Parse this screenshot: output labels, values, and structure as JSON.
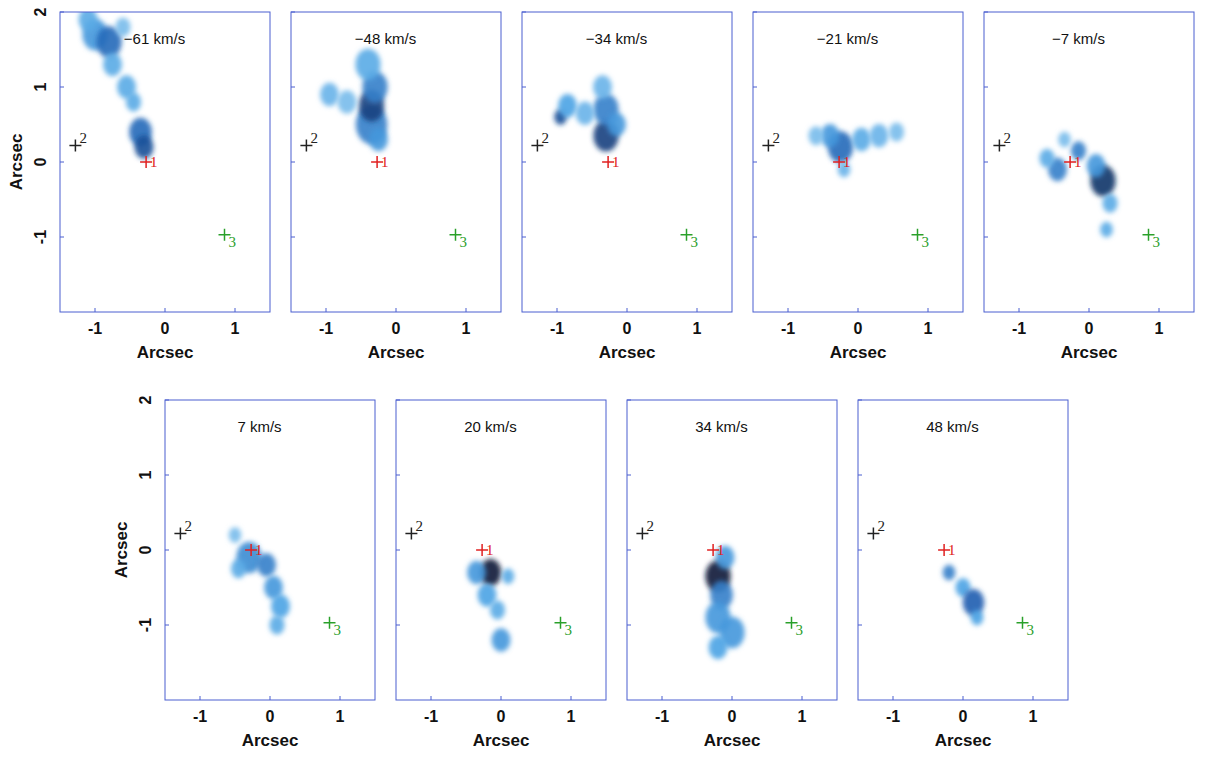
{
  "chart_data": [
    {
      "type": "channel_map",
      "title": "−61 km/s",
      "xlabel": "Arcsec",
      "ylabel": "Arcsec",
      "xlim": [
        -1.5,
        1.5
      ],
      "ylim": [
        -2,
        2
      ],
      "xticks": [
        -1,
        0,
        1
      ],
      "yticks": [
        -1,
        0,
        1,
        2
      ],
      "emission": {
        "x": [
          -1.0,
          -0.8,
          -0.75,
          -0.55,
          -0.45,
          -0.35,
          -0.3,
          -1.1,
          -0.6
        ],
        "y": [
          1.7,
          1.6,
          1.3,
          1.0,
          0.8,
          0.4,
          0.2,
          1.9,
          1.8
        ],
        "size": [
          0.2,
          0.2,
          0.15,
          0.15,
          0.12,
          0.18,
          0.15,
          0.15,
          0.12
        ],
        "intensity": [
          0.5,
          0.7,
          0.4,
          0.4,
          0.4,
          0.7,
          0.8,
          0.4,
          0.3
        ]
      },
      "markers": {
        "labels": [
          "1",
          "2",
          "3"
        ],
        "x": [
          -0.27,
          -1.28,
          0.85
        ],
        "y": [
          0,
          0.22,
          -0.97
        ],
        "colors": [
          "#e02020",
          "#222222",
          "#2aa02a"
        ]
      }
    },
    {
      "type": "channel_map",
      "title": "−48 km/s",
      "xlabel": "Arcsec",
      "xlim": [
        -1.5,
        1.5
      ],
      "ylim": [
        -2,
        2
      ],
      "xticks": [
        -1,
        0,
        1
      ],
      "yticks": [
        -1,
        0,
        1,
        2
      ],
      "tick_labels": "x",
      "emission": {
        "x": [
          -0.35,
          -0.35,
          -0.3,
          -0.4,
          -0.95,
          -0.7,
          -0.25
        ],
        "y": [
          0.5,
          0.75,
          1.0,
          1.3,
          0.9,
          0.8,
          0.3
        ],
        "size": [
          0.25,
          0.2,
          0.2,
          0.2,
          0.15,
          0.15,
          0.15
        ],
        "intensity": [
          0.6,
          0.85,
          0.6,
          0.4,
          0.35,
          0.3,
          0.5
        ]
      },
      "markers": {
        "labels": [
          "1",
          "2",
          "3"
        ],
        "x": [
          -0.27,
          -1.28,
          0.85
        ],
        "y": [
          0,
          0.22,
          -0.97
        ],
        "colors": [
          "#e02020",
          "#222222",
          "#2aa02a"
        ]
      }
    },
    {
      "type": "channel_map",
      "title": "−34 km/s",
      "xlabel": "Arcsec",
      "xlim": [
        -1.5,
        1.5
      ],
      "ylim": [
        -2,
        2
      ],
      "xticks": [
        -1,
        0,
        1
      ],
      "yticks": [
        -1,
        0,
        1,
        2
      ],
      "tick_labels": "x",
      "emission": {
        "x": [
          -0.3,
          -0.3,
          -0.15,
          -0.95,
          -0.85,
          -0.6,
          -0.35
        ],
        "y": [
          0.35,
          0.7,
          0.5,
          0.6,
          0.75,
          0.65,
          1.0
        ],
        "size": [
          0.2,
          0.2,
          0.15,
          0.1,
          0.15,
          0.15,
          0.15
        ],
        "intensity": [
          0.85,
          0.6,
          0.5,
          0.8,
          0.45,
          0.35,
          0.35
        ]
      },
      "markers": {
        "labels": [
          "1",
          "2",
          "3"
        ],
        "x": [
          -0.27,
          -1.28,
          0.85
        ],
        "y": [
          0,
          0.22,
          -0.97
        ],
        "colors": [
          "#e02020",
          "#222222",
          "#2aa02a"
        ]
      }
    },
    {
      "type": "channel_map",
      "title": "−21 km/s",
      "xlabel": "Arcsec",
      "xlim": [
        -1.5,
        1.5
      ],
      "ylim": [
        -2,
        2
      ],
      "xticks": [
        -1,
        0,
        1
      ],
      "yticks": [
        -1,
        0,
        1,
        2
      ],
      "tick_labels": "x",
      "emission": {
        "x": [
          -0.25,
          -0.4,
          0.05,
          0.3,
          0.55,
          -0.6,
          -0.2
        ],
        "y": [
          0.2,
          0.35,
          0.3,
          0.35,
          0.4,
          0.35,
          -0.1
        ],
        "size": [
          0.2,
          0.15,
          0.15,
          0.15,
          0.12,
          0.12,
          0.1
        ],
        "intensity": [
          0.7,
          0.5,
          0.4,
          0.35,
          0.3,
          0.3,
          0.35
        ]
      },
      "markers": {
        "labels": [
          "1",
          "2",
          "3"
        ],
        "x": [
          -0.27,
          -1.28,
          0.85
        ],
        "y": [
          0,
          0.22,
          -0.97
        ],
        "colors": [
          "#e02020",
          "#222222",
          "#2aa02a"
        ]
      }
    },
    {
      "type": "channel_map",
      "title": "−7 km/s",
      "xlabel": "Arcsec",
      "xlim": [
        -1.5,
        1.5
      ],
      "ylim": [
        -2,
        2
      ],
      "xticks": [
        -1,
        0,
        1
      ],
      "yticks": [
        -1,
        0,
        1,
        2
      ],
      "tick_labels": "x",
      "emission": {
        "x": [
          -0.45,
          -0.6,
          -0.15,
          0.2,
          0.1,
          0.3,
          0.25,
          -0.35
        ],
        "y": [
          -0.1,
          0.05,
          0.15,
          -0.25,
          -0.05,
          -0.55,
          -0.9,
          0.3
        ],
        "size": [
          0.15,
          0.12,
          0.12,
          0.2,
          0.15,
          0.12,
          0.1,
          0.1
        ],
        "intensity": [
          0.6,
          0.4,
          0.6,
          0.9,
          0.5,
          0.4,
          0.4,
          0.3
        ]
      },
      "markers": {
        "labels": [
          "1",
          "2",
          "3"
        ],
        "x": [
          -0.27,
          -1.28,
          0.85
        ],
        "y": [
          0,
          0.22,
          -0.97
        ],
        "colors": [
          "#e02020",
          "#222222",
          "#2aa02a"
        ]
      }
    },
    {
      "type": "channel_map",
      "title": "7 km/s",
      "xlabel": "Arcsec",
      "ylabel": "Arcsec",
      "xlim": [
        -1.5,
        1.5
      ],
      "ylim": [
        -2,
        2
      ],
      "xticks": [
        -1,
        0,
        1
      ],
      "yticks": [
        -1,
        0,
        1,
        2
      ],
      "emission": {
        "x": [
          -0.3,
          -0.05,
          0.05,
          0.15,
          0.1,
          -0.5,
          -0.45
        ],
        "y": [
          -0.1,
          -0.2,
          -0.5,
          -0.75,
          -1.0,
          0.2,
          -0.25
        ],
        "size": [
          0.2,
          0.15,
          0.15,
          0.15,
          0.12,
          0.1,
          0.12
        ],
        "intensity": [
          0.55,
          0.6,
          0.5,
          0.45,
          0.4,
          0.3,
          0.4
        ]
      },
      "markers": {
        "labels": [
          "1",
          "2",
          "3"
        ],
        "x": [
          -0.27,
          -1.28,
          0.85
        ],
        "y": [
          0,
          0.22,
          -0.97
        ],
        "colors": [
          "#e02020",
          "#222222",
          "#2aa02a"
        ]
      }
    },
    {
      "type": "channel_map",
      "title": "20 km/s",
      "xlabel": "Arcsec",
      "xlim": [
        -1.5,
        1.5
      ],
      "ylim": [
        -2,
        2
      ],
      "xticks": [
        -1,
        0,
        1
      ],
      "yticks": [
        -1,
        0,
        1,
        2
      ],
      "tick_labels": "x",
      "emission": {
        "x": [
          -0.15,
          -0.35,
          -0.2,
          -0.05,
          0.0,
          0.1
        ],
        "y": [
          -0.3,
          -0.3,
          -0.6,
          -0.8,
          -1.2,
          -0.35
        ],
        "size": [
          0.17,
          0.15,
          0.15,
          0.12,
          0.15,
          0.1
        ],
        "intensity": [
          1.0,
          0.5,
          0.45,
          0.4,
          0.5,
          0.4
        ]
      },
      "markers": {
        "labels": [
          "1",
          "2",
          "3"
        ],
        "x": [
          -0.27,
          -1.28,
          0.85
        ],
        "y": [
          0,
          0.22,
          -0.97
        ],
        "colors": [
          "#e02020",
          "#222222",
          "#2aa02a"
        ]
      }
    },
    {
      "type": "channel_map",
      "title": "34 km/s",
      "xlabel": "Arcsec",
      "xlim": [
        -1.5,
        1.5
      ],
      "ylim": [
        -2,
        2
      ],
      "xticks": [
        -1,
        0,
        1
      ],
      "yticks": [
        -1,
        0,
        1,
        2
      ],
      "tick_labels": "x",
      "emission": {
        "x": [
          -0.2,
          -0.15,
          -0.2,
          0.0,
          -0.2,
          -0.1
        ],
        "y": [
          -0.35,
          -0.6,
          -0.9,
          -1.1,
          -1.3,
          -0.1
        ],
        "size": [
          0.2,
          0.18,
          0.2,
          0.2,
          0.15,
          0.15
        ],
        "intensity": [
          1.0,
          0.6,
          0.5,
          0.5,
          0.45,
          0.5
        ]
      },
      "markers": {
        "labels": [
          "1",
          "2",
          "3"
        ],
        "x": [
          -0.27,
          -1.28,
          0.85
        ],
        "y": [
          0,
          0.22,
          -0.97
        ],
        "colors": [
          "#e02020",
          "#222222",
          "#2aa02a"
        ]
      }
    },
    {
      "type": "channel_map",
      "title": "48 km/s",
      "xlabel": "Arcsec",
      "xlim": [
        -1.5,
        1.5
      ],
      "ylim": [
        -2,
        2
      ],
      "xticks": [
        -1,
        0,
        1
      ],
      "yticks": [
        -1,
        0,
        1,
        2
      ],
      "tick_labels": "x",
      "emission": {
        "x": [
          -0.2,
          0.0,
          0.15,
          0.2
        ],
        "y": [
          -0.3,
          -0.5,
          -0.7,
          -0.9
        ],
        "size": [
          0.1,
          0.12,
          0.17,
          0.1
        ],
        "intensity": [
          0.6,
          0.45,
          0.75,
          0.45
        ]
      },
      "markers": {
        "labels": [
          "1",
          "2",
          "3"
        ],
        "x": [
          -0.27,
          -1.28,
          0.85
        ],
        "y": [
          0,
          0.22,
          -0.97
        ],
        "colors": [
          "#e02020",
          "#222222",
          "#2aa02a"
        ]
      }
    }
  ]
}
